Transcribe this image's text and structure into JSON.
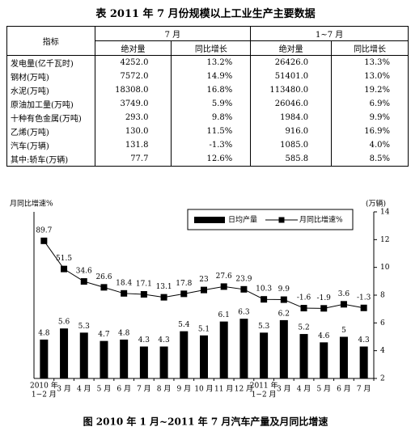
{
  "header": {
    "title": "表 2011 年 7 月份规模以上工业生产主要数据"
  },
  "table": {
    "head": [
      "指标",
      "7 月",
      "1~7 月"
    ],
    "subhead": [
      "绝对量",
      "同比增长",
      "绝对量",
      "同比增长"
    ],
    "rows": [
      [
        "发电量(亿千瓦时)",
        "4252.0",
        "13.2%",
        "26426.0",
        "13.3%"
      ],
      [
        "钢材(万吨)",
        "7572.0",
        "14.9%",
        "51401.0",
        "13.0%"
      ],
      [
        "水泥(万吨)",
        "18308.0",
        "16.8%",
        "113480.0",
        "19.2%"
      ],
      [
        "原油加工量(万吨)",
        "3749.0",
        "5.9%",
        "26046.0",
        "6.9%"
      ],
      [
        "十种有色金属(万吨)",
        "293.0",
        "9.8%",
        "1984.0",
        "9.9%"
      ],
      [
        "乙烯(万吨)",
        "130.0",
        "11.5%",
        "916.0",
        "16.9%"
      ],
      [
        "汽车(万辆)",
        "131.8",
        "-1.3%",
        "1085.0",
        "4.0%"
      ],
      [
        "其中:轿车(万辆)",
        "77.7",
        "12.6%",
        "585.8",
        "8.5%"
      ]
    ]
  },
  "chart_data": {
    "type": "bar-line",
    "caption": "图 2010 年 1 月~2011 年 7 月汽车产量及月同比增速",
    "ylabel": "月同比增速%",
    "y2label": "(万辆)",
    "categories": [
      "1−2 月",
      "3 月",
      "4 月",
      "5 月",
      "6 月",
      "7 月",
      "8 月",
      "9 月",
      "10 月",
      "11 月",
      "12 月",
      "1−2 月",
      "3 月",
      "4 月",
      "5 月",
      "6 月",
      "7 月"
    ],
    "year_labels": [
      "2010 年",
      null,
      null,
      null,
      null,
      null,
      null,
      null,
      null,
      null,
      null,
      "2011 年",
      null,
      null,
      null,
      null,
      null
    ],
    "ylim": [
      -97,
      129
    ],
    "y2lim": [
      2,
      14
    ],
    "y2ticks": [
      2,
      4,
      6,
      8,
      10,
      12,
      14
    ],
    "series": [
      {
        "name": "日均产量",
        "axis": "y2",
        "color": "#000000",
        "values": [
          4.8,
          5.6,
          5.3,
          4.7,
          4.8,
          4.3,
          4.3,
          5.4,
          5.1,
          6.1,
          6.3,
          5.3,
          6.2,
          5.2,
          4.6,
          5,
          4.3
        ]
      },
      {
        "name": "月同比增速%",
        "axis": "y",
        "color": "#000000",
        "values": [
          89.7,
          51.5,
          34.6,
          26.6,
          18.4,
          17.1,
          13.1,
          17.8,
          23,
          27.6,
          23.9,
          10.3,
          9.9,
          -1.6,
          -1.9,
          3.6,
          -1.3
        ]
      }
    ]
  }
}
